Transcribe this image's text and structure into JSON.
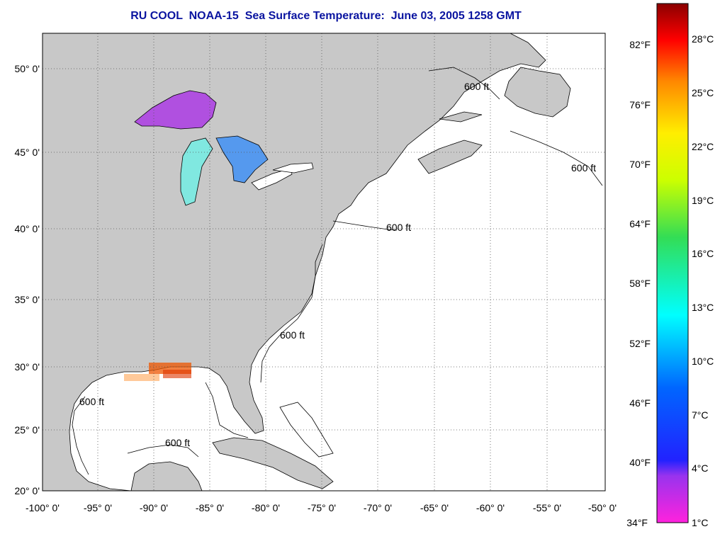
{
  "title": "RU COOL  NOAA-15  Sea Surface Temperature:  June 03, 2005 1258 GMT",
  "map": {
    "lon_labels": [
      "-100° 0'",
      "-95° 0'",
      "-90° 0'",
      "-85° 0'",
      "-80° 0'",
      "-75° 0'",
      "-70° 0'",
      "-65° 0'",
      "-60° 0'",
      "-55° 0'",
      "-50° 0'"
    ],
    "lat_labels": [
      "50° 0'",
      "45° 0'",
      "40° 0'",
      "35° 0'",
      "30° 0'",
      "25° 0'",
      "20° 0'"
    ],
    "contour_label": "600 ft",
    "colors": {
      "land": "#c8c8c8",
      "ocean": "#ffffff",
      "grid": "#555555"
    }
  },
  "colorbar": {
    "fahrenheit_labels": [
      "82°F",
      "76°F",
      "70°F",
      "64°F",
      "58°F",
      "52°F",
      "46°F",
      "40°F",
      "34°F"
    ],
    "celsius_labels": [
      "28°C",
      "25°C",
      "22°C",
      "19°C",
      "16°C",
      "13°C",
      "10°C",
      "7°C",
      "4°C",
      "1°C"
    ]
  }
}
